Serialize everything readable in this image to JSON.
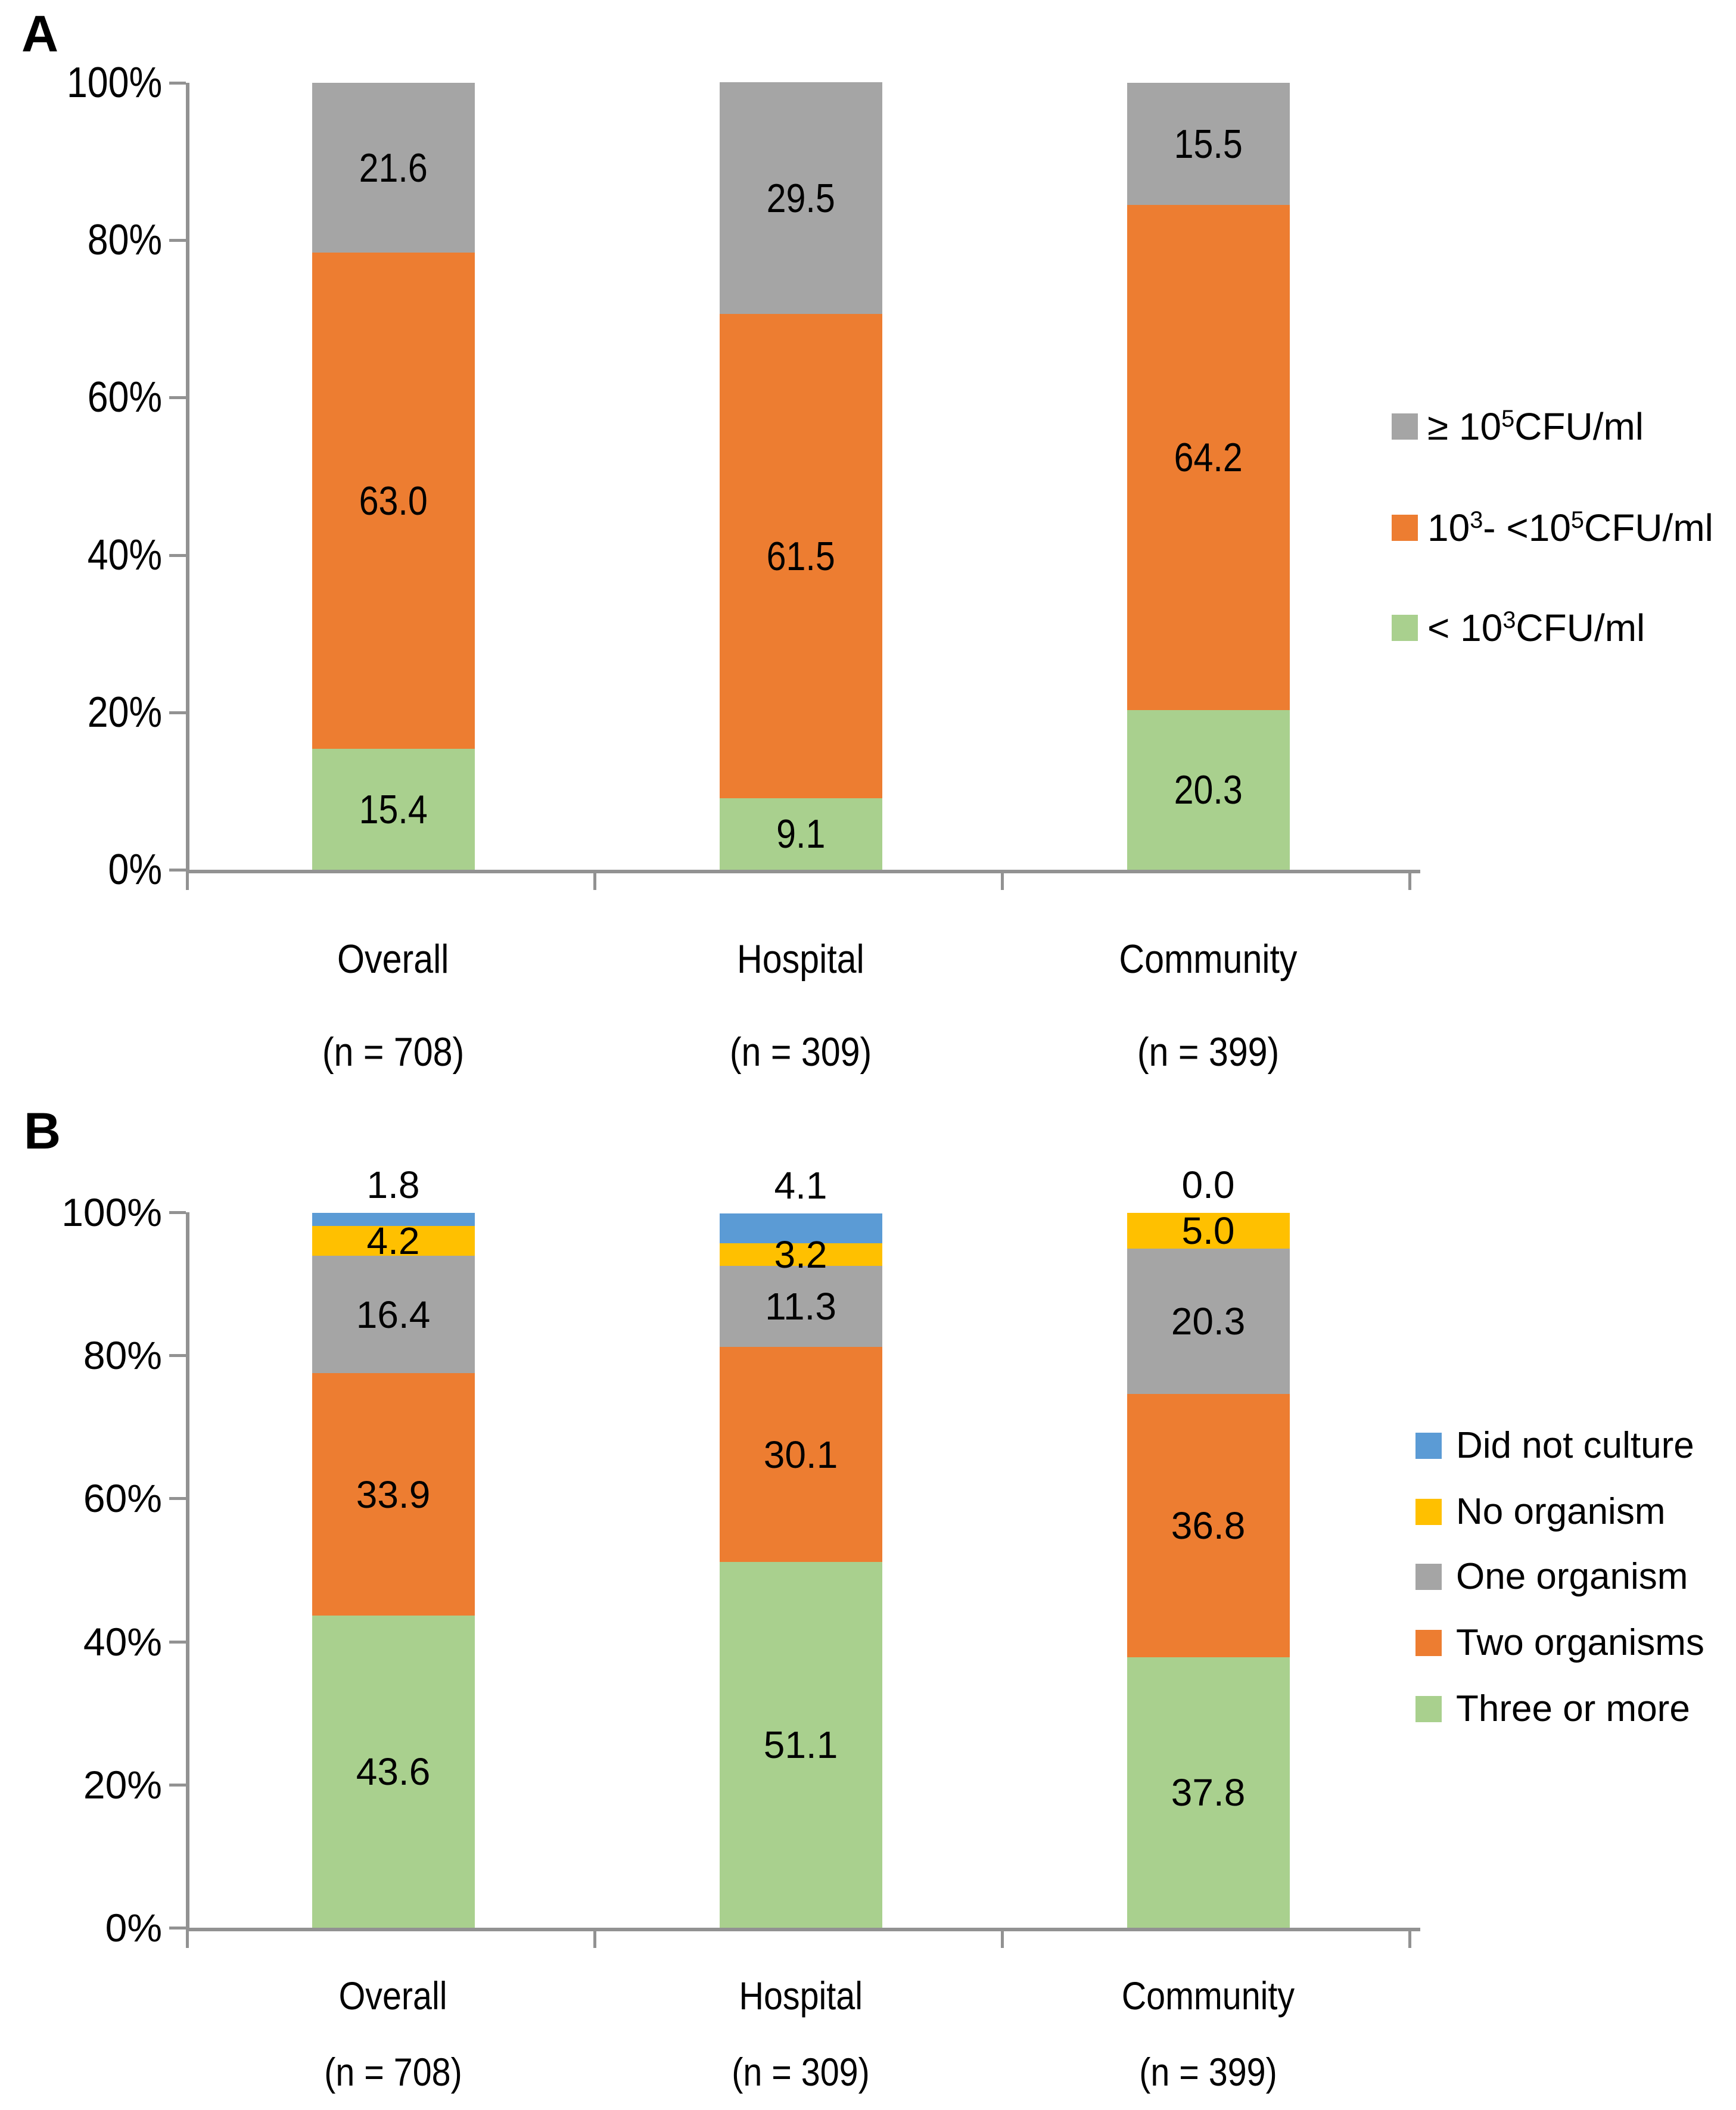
{
  "chart_data": [
    {
      "panel_letter": "A",
      "type": "bar",
      "stacked": true,
      "percent_stacked": true,
      "title": "",
      "xlabel": "",
      "ylabel": "",
      "ylim": [
        0,
        100
      ],
      "yticks": [
        "100%",
        "80%",
        "60%",
        "40%",
        "20%",
        "0%"
      ],
      "grid": false,
      "legend_position": "right",
      "categories": [
        [
          "Overall",
          "(n = 708)"
        ],
        [
          "Hospital",
          "(n = 309)"
        ],
        [
          "Community",
          "(n = 399)"
        ]
      ],
      "series": [
        {
          "name": "< 10³CFU/ml",
          "color": "#A9D08E",
          "label_parts": [
            {
              "t": "< 10"
            },
            {
              "sup": "3"
            },
            {
              "t": "CFU/ml"
            }
          ],
          "values": [
            15.4,
            9.1,
            20.3
          ],
          "labels": [
            "15.4",
            "9.1",
            "20.3"
          ]
        },
        {
          "name": "10³- <10⁵CFU/ml",
          "color": "#ED7D31",
          "label_parts": [
            {
              "t": "10"
            },
            {
              "sup": "3"
            },
            {
              "t": "- <10"
            },
            {
              "sup": "5"
            },
            {
              "t": "CFU/ml"
            }
          ],
          "values": [
            63.0,
            61.5,
            64.2
          ],
          "labels": [
            "63.0",
            "61.5",
            "64.2"
          ]
        },
        {
          "name": "≥ 10⁵CFU/ml",
          "color": "#A5A5A5",
          "label_parts": [
            {
              "t": "≥ 10"
            },
            {
              "sup": "5"
            },
            {
              "t": "CFU/ml"
            }
          ],
          "values": [
            21.6,
            29.5,
            15.5
          ],
          "labels": [
            "21.6",
            "29.5",
            "15.5"
          ]
        }
      ]
    },
    {
      "panel_letter": "B",
      "type": "bar",
      "stacked": true,
      "percent_stacked": true,
      "title": "",
      "xlabel": "",
      "ylabel": "",
      "ylim": [
        0,
        100
      ],
      "yticks": [
        "100%",
        "80%",
        "60%",
        "40%",
        "20%",
        "0%"
      ],
      "grid": false,
      "legend_position": "right",
      "categories": [
        [
          "Overall",
          "(n = 708)"
        ],
        [
          "Hospital",
          "(n = 309)"
        ],
        [
          "Community",
          "(n = 399)"
        ]
      ],
      "series": [
        {
          "name": "Three or more",
          "color": "#A9D08E",
          "label_parts": [
            {
              "t": "Three or more"
            }
          ],
          "values": [
            43.6,
            51.1,
            37.8
          ],
          "labels": [
            "43.6",
            "51.1",
            "37.8"
          ]
        },
        {
          "name": "Two organisms",
          "color": "#ED7D31",
          "label_parts": [
            {
              "t": "Two organisms"
            }
          ],
          "values": [
            33.9,
            30.1,
            36.8
          ],
          "labels": [
            "33.9",
            "30.1",
            "36.8"
          ]
        },
        {
          "name": "One organism",
          "color": "#A5A5A5",
          "label_parts": [
            {
              "t": "One organism"
            }
          ],
          "values": [
            16.4,
            11.3,
            20.3
          ],
          "labels": [
            "16.4",
            "11.3",
            "20.3"
          ]
        },
        {
          "name": "No organism",
          "color": "#FFC000",
          "label_parts": [
            {
              "t": "No organism"
            }
          ],
          "values": [
            4.2,
            3.2,
            5.0
          ],
          "labels": [
            "4.2",
            "3.2",
            "5.0"
          ]
        },
        {
          "name": "Did not culture",
          "color": "#5B9BD5",
          "label_parts": [
            {
              "t": "Did not culture"
            }
          ],
          "values": [
            1.8,
            4.1,
            0.0
          ],
          "labels": [
            "1.8",
            "4.1",
            "0.0"
          ],
          "label_outside": true
        }
      ]
    }
  ]
}
